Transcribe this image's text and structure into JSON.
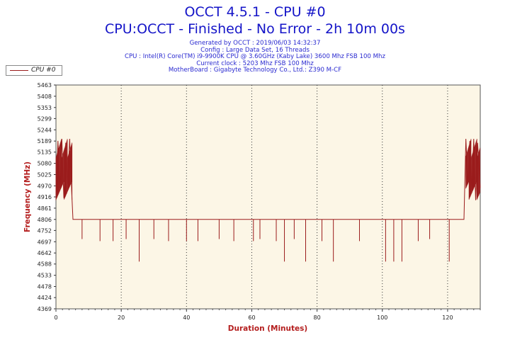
{
  "header": {
    "title": "OCCT 4.5.1 - CPU #0",
    "subtitle": "CPU:OCCT - Finished - No Error - 2h 10m 00s",
    "info_lines": [
      "Generated by OCCT : 2019/06/03 14:32:37",
      "Config : Large Data Set, 16 Threads",
      "CPU : Intel(R) Core(TM) i9-9900K CPU @ 3.60GHz (Kaby Lake) 3600 Mhz FSB 100 Mhz",
      "Current clock : 5203 Mhz FSB 100 Mhz",
      "MotherBoard : Gigabyte Technology Co., Ltd.: Z390 M-CF"
    ]
  },
  "colors": {
    "series": "#9b1c1c",
    "plot_bg": "#fcf6e6",
    "title": "#1414c8",
    "info": "#2a2ad0",
    "axis_title": "#b41e1e"
  },
  "chart_data": {
    "type": "line",
    "xlabel": "Duration (Minutes)",
    "ylabel": "Frequency (MHz)",
    "xlim": [
      0,
      130
    ],
    "ylim": [
      4369,
      5463
    ],
    "x_ticks": [
      0,
      20,
      40,
      60,
      80,
      100,
      120
    ],
    "y_ticks": [
      4369,
      4424,
      4478,
      4533,
      4588,
      4642,
      4697,
      4752,
      4806,
      4861,
      4916,
      4970,
      5025,
      5080,
      5135,
      5189,
      5244,
      5299,
      5353,
      5408,
      5463
    ],
    "grid": "vertical dotted",
    "legend": "top-left",
    "series": [
      {
        "name": "CPU #0",
        "baseline": 4806,
        "x": [
          0,
          0.6,
          1.2,
          1.8,
          2.4,
          3.0,
          3.6,
          4.2,
          4.8,
          5.2,
          8.0,
          13.5,
          17.5,
          21.5,
          25.5,
          30.0,
          34.5,
          40.0,
          43.5,
          50.0,
          54.5,
          60.5,
          62.5,
          67.5,
          70.0,
          73.0,
          76.5,
          81.5,
          85.0,
          93.0,
          101.0,
          103.5,
          106.0,
          111.0,
          114.5,
          120.5,
          125.0,
          125.6,
          126.2,
          126.8,
          127.4,
          128.0,
          128.6,
          129.2,
          130.0
        ],
        "y": [
          4930,
          5190,
          4960,
          5200,
          4910,
          5180,
          4980,
          5200,
          4950,
          4806,
          4710,
          4700,
          4700,
          4710,
          4600,
          4710,
          4700,
          4700,
          4700,
          4710,
          4700,
          4700,
          4710,
          4700,
          4600,
          4710,
          4600,
          4700,
          4600,
          4700,
          4600,
          4600,
          4600,
          4700,
          4710,
          4600,
          4806,
          5200,
          4980,
          5190,
          4950,
          5200,
          4900,
          5180,
          4960
        ]
      }
    ]
  }
}
